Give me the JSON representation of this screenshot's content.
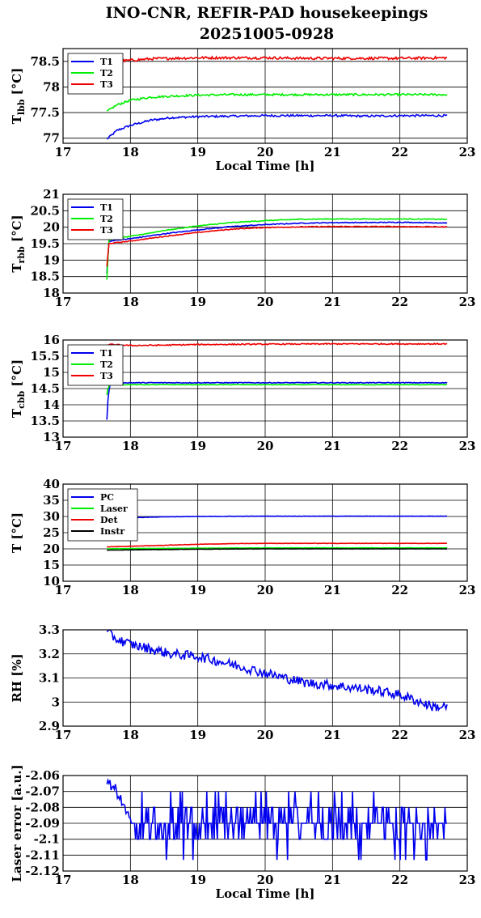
{
  "title": {
    "line1": "INO-CNR, REFIR-PAD housekeepings",
    "line2": "20251005-0928"
  },
  "colors": {
    "T1": "#0000ee",
    "T2": "#00ee00",
    "T3": "#ee0000",
    "PC": "#0000ee",
    "Laser": "#00ee00",
    "Det": "#ee0000",
    "Instr": "#000000",
    "RH": "#0000ee",
    "LaserError": "#0000ee"
  },
  "chart_data": [
    {
      "type": "line",
      "id": "lbb",
      "ylabel_main": "T",
      "ylabel_sub": "lbb",
      "ylabel_unit": " [°C]",
      "xlabel": "Local Time [h]",
      "xlim": [
        17,
        23
      ],
      "ylim": [
        76.9,
        78.75
      ],
      "xticks": [
        "17",
        "18",
        "19",
        "20",
        "21",
        "22",
        "23"
      ],
      "yticks": [
        {
          "v": 77,
          "label": "77"
        },
        {
          "v": 77.5,
          "label": "77.5"
        },
        {
          "v": 78,
          "label": "78"
        },
        {
          "v": 78.5,
          "label": "78.5"
        }
      ],
      "grid": true,
      "legend_position": "top-left",
      "series": [
        {
          "name": "T1",
          "x": [
            17.65,
            17.8,
            18.0,
            18.3,
            18.6,
            19.0,
            19.5,
            20.0,
            20.5,
            21.0,
            21.5,
            22.0,
            22.7
          ],
          "y": [
            76.98,
            77.15,
            77.25,
            77.35,
            77.4,
            77.42,
            77.43,
            77.44,
            77.44,
            77.44,
            77.43,
            77.44,
            77.44
          ],
          "noise": 0.02
        },
        {
          "name": "T2",
          "x": [
            17.65,
            17.8,
            18.0,
            18.3,
            18.6,
            19.0,
            19.5,
            20.0,
            20.5,
            21.0,
            21.5,
            22.0,
            22.7
          ],
          "y": [
            77.52,
            77.65,
            77.74,
            77.8,
            77.82,
            77.84,
            77.85,
            77.85,
            77.85,
            77.85,
            77.85,
            77.85,
            77.85
          ],
          "noise": 0.02
        },
        {
          "name": "T3",
          "x": [
            17.65,
            17.8,
            18.0,
            18.3,
            18.6,
            19.0,
            19.5,
            20.0,
            20.5,
            21.0,
            21.5,
            22.0,
            22.7
          ],
          "y": [
            78.45,
            78.5,
            78.52,
            78.55,
            78.56,
            78.57,
            78.57,
            78.57,
            78.56,
            78.56,
            78.56,
            78.56,
            78.57
          ],
          "noise": 0.025
        }
      ]
    },
    {
      "type": "line",
      "id": "rbb",
      "ylabel_main": "T",
      "ylabel_sub": "rbb",
      "ylabel_unit": " [°C]",
      "xlabel": "",
      "xlim": [
        17,
        23
      ],
      "ylim": [
        18,
        21
      ],
      "xticks": [
        "17",
        "18",
        "19",
        "20",
        "21",
        "22",
        "23"
      ],
      "yticks": [
        {
          "v": 18,
          "label": "18"
        },
        {
          "v": 18.5,
          "label": "18.5"
        },
        {
          "v": 19,
          "label": "19"
        },
        {
          "v": 19.5,
          "label": "19.5"
        },
        {
          "v": 20,
          "label": "20"
        },
        {
          "v": 20.5,
          "label": "20.5"
        },
        {
          "v": 21,
          "label": "21"
        }
      ],
      "grid": true,
      "legend_position": "top-left",
      "series": [
        {
          "name": "T1",
          "x": [
            17.65,
            17.68,
            17.75,
            18.0,
            18.5,
            19.0,
            19.5,
            20.0,
            20.5,
            21.0,
            21.5,
            22.0,
            22.7
          ],
          "y": [
            18.6,
            19.55,
            19.6,
            19.65,
            19.8,
            19.92,
            20.02,
            20.08,
            20.12,
            20.14,
            20.14,
            20.15,
            20.13
          ],
          "noise": 0.012
        },
        {
          "name": "T2",
          "x": [
            17.65,
            17.68,
            17.75,
            18.0,
            18.5,
            19.0,
            19.5,
            20.0,
            20.5,
            21.0,
            21.5,
            22.0,
            22.7
          ],
          "y": [
            18.4,
            19.6,
            19.65,
            19.72,
            19.9,
            20.04,
            20.14,
            20.2,
            20.24,
            20.25,
            20.25,
            20.25,
            20.24
          ],
          "noise": 0.012
        },
        {
          "name": "T3",
          "x": [
            17.65,
            17.68,
            17.75,
            18.0,
            18.5,
            19.0,
            19.5,
            20.0,
            20.5,
            21.0,
            21.5,
            22.0,
            22.7
          ],
          "y": [
            18.8,
            19.5,
            19.52,
            19.58,
            19.72,
            19.84,
            19.94,
            19.99,
            20.01,
            20.02,
            20.02,
            20.02,
            20.01
          ],
          "noise": 0.012
        }
      ]
    },
    {
      "type": "line",
      "id": "cbb",
      "ylabel_main": "T",
      "ylabel_sub": "cbb",
      "ylabel_unit": " [°C]",
      "xlabel": "",
      "xlim": [
        17,
        23
      ],
      "ylim": [
        13,
        16
      ],
      "xticks": [
        "17",
        "18",
        "19",
        "20",
        "21",
        "22",
        "23"
      ],
      "yticks": [
        {
          "v": 13,
          "label": "13"
        },
        {
          "v": 13.5,
          "label": "13.5"
        },
        {
          "v": 14,
          "label": "14"
        },
        {
          "v": 14.5,
          "label": "14.5"
        },
        {
          "v": 15,
          "label": "15"
        },
        {
          "v": 15.5,
          "label": "15.5"
        },
        {
          "v": 16,
          "label": "16"
        }
      ],
      "grid": true,
      "legend_position": "top-left",
      "series": [
        {
          "name": "T1",
          "x": [
            17.65,
            17.67,
            17.7,
            17.8,
            18.0,
            19.0,
            20.0,
            21.0,
            22.0,
            22.7
          ],
          "y": [
            13.55,
            14.3,
            14.65,
            14.68,
            14.68,
            14.68,
            14.68,
            14.68,
            14.68,
            14.68
          ],
          "noise": 0.012
        },
        {
          "name": "T2",
          "x": [
            17.65,
            17.67,
            17.7,
            17.8,
            18.0,
            19.0,
            20.0,
            21.0,
            22.0,
            22.7
          ],
          "y": [
            14.3,
            14.55,
            14.62,
            14.63,
            14.62,
            14.62,
            14.62,
            14.62,
            14.62,
            14.62
          ],
          "noise": 0.012
        },
        {
          "name": "T3",
          "x": [
            17.65,
            17.7,
            17.8,
            18.0,
            18.5,
            19.0,
            20.0,
            21.0,
            22.0,
            22.7
          ],
          "y": [
            15.85,
            15.86,
            15.85,
            15.83,
            15.84,
            15.86,
            15.87,
            15.88,
            15.88,
            15.88
          ],
          "noise": 0.018
        }
      ]
    },
    {
      "type": "line",
      "id": "temps",
      "ylabel_main": "T [°C]",
      "ylabel_sub": "",
      "ylabel_unit": "",
      "xlabel": "",
      "xlim": [
        17,
        23
      ],
      "ylim": [
        10,
        40
      ],
      "xticks": [
        "17",
        "18",
        "19",
        "20",
        "21",
        "22",
        "23"
      ],
      "yticks": [
        {
          "v": 10,
          "label": "10"
        },
        {
          "v": 15,
          "label": "15"
        },
        {
          "v": 20,
          "label": "20"
        },
        {
          "v": 25,
          "label": "25"
        },
        {
          "v": 30,
          "label": "30"
        },
        {
          "v": 35,
          "label": "35"
        },
        {
          "v": 40,
          "label": "40"
        }
      ],
      "grid": true,
      "legend_position": "top-left",
      "series": [
        {
          "name": "PC",
          "x": [
            17.65,
            17.8,
            18.0,
            18.5,
            19.0,
            20.0,
            21.0,
            22.0,
            22.7
          ],
          "y": [
            29.0,
            29.4,
            29.6,
            29.9,
            30.0,
            30.1,
            30.1,
            30.1,
            30.1
          ],
          "noise": 0.05
        },
        {
          "name": "Laser",
          "x": [
            17.65,
            18.0,
            19.0,
            20.0,
            21.0,
            22.0,
            22.7
          ],
          "y": [
            20.0,
            20.1,
            20.2,
            20.3,
            20.3,
            20.3,
            20.3
          ],
          "noise": 0.04
        },
        {
          "name": "Det",
          "x": [
            17.65,
            18.0,
            18.5,
            19.0,
            19.5,
            20.0,
            21.0,
            22.0,
            22.7
          ],
          "y": [
            20.6,
            20.8,
            21.1,
            21.4,
            21.6,
            21.7,
            21.7,
            21.7,
            21.7
          ],
          "noise": 0.05
        },
        {
          "name": "Instr",
          "x": [
            17.65,
            18.0,
            19.0,
            20.0,
            21.0,
            22.0,
            22.7
          ],
          "y": [
            19.6,
            19.7,
            19.9,
            20.0,
            20.0,
            20.0,
            20.0
          ],
          "noise": 0.03
        }
      ]
    },
    {
      "type": "line",
      "id": "rh",
      "ylabel_main": "RH [%]",
      "ylabel_sub": "",
      "ylabel_unit": "",
      "xlabel": "",
      "xlim": [
        17,
        23
      ],
      "ylim": [
        2.9,
        3.3
      ],
      "xticks": [
        "17",
        "18",
        "19",
        "20",
        "21",
        "22",
        "23"
      ],
      "yticks": [
        {
          "v": 2.9,
          "label": "2.9"
        },
        {
          "v": 3.0,
          "label": "3"
        },
        {
          "v": 3.1,
          "label": "3.1"
        },
        {
          "v": 3.2,
          "label": "3.2"
        },
        {
          "v": 3.3,
          "label": "3.3"
        }
      ],
      "grid": true,
      "legend_position": "none",
      "series": [
        {
          "x": [
            17.65,
            17.8,
            18.0,
            18.3,
            18.6,
            19.0,
            19.3,
            19.6,
            20.0,
            20.3,
            20.6,
            21.0,
            21.3,
            21.6,
            22.0,
            22.3,
            22.5,
            22.7
          ],
          "y": [
            3.29,
            3.26,
            3.24,
            3.22,
            3.2,
            3.19,
            3.17,
            3.15,
            3.12,
            3.1,
            3.08,
            3.07,
            3.06,
            3.05,
            3.03,
            3.0,
            2.98,
            2.98
          ],
          "noise": 0.02
        }
      ]
    },
    {
      "type": "line",
      "id": "laser",
      "ylabel_main": "Laser error [a.u.]",
      "ylabel_sub": "",
      "ylabel_unit": "",
      "xlabel": "Local Time [h]",
      "xlim": [
        17,
        23
      ],
      "ylim": [
        -2.12,
        -2.06
      ],
      "xticks": [
        "17",
        "18",
        "19",
        "20",
        "21",
        "22",
        "23"
      ],
      "yticks": [
        {
          "v": -2.12,
          "label": "-2.12"
        },
        {
          "v": -2.11,
          "label": "-2.11"
        },
        {
          "v": -2.1,
          "label": "-2.1"
        },
        {
          "v": -2.09,
          "label": "-2.09"
        },
        {
          "v": -2.08,
          "label": "-2.08"
        },
        {
          "v": -2.07,
          "label": "-2.07"
        },
        {
          "v": -2.06,
          "label": "-2.06"
        }
      ],
      "grid": true,
      "legend_position": "none",
      "series": [
        {
          "type": "discrete",
          "x": [
            17.65,
            17.8,
            17.9,
            18.0,
            18.1,
            18.2,
            22.7
          ],
          "y": [
            -2.065,
            -2.07,
            -2.08,
            -2.09,
            -2.085,
            -2.095,
            -2.095
          ],
          "levels": [
            -2.116,
            -2.11,
            -2.1,
            -2.09,
            -2.08
          ],
          "noise": 0.0
        }
      ]
    }
  ]
}
